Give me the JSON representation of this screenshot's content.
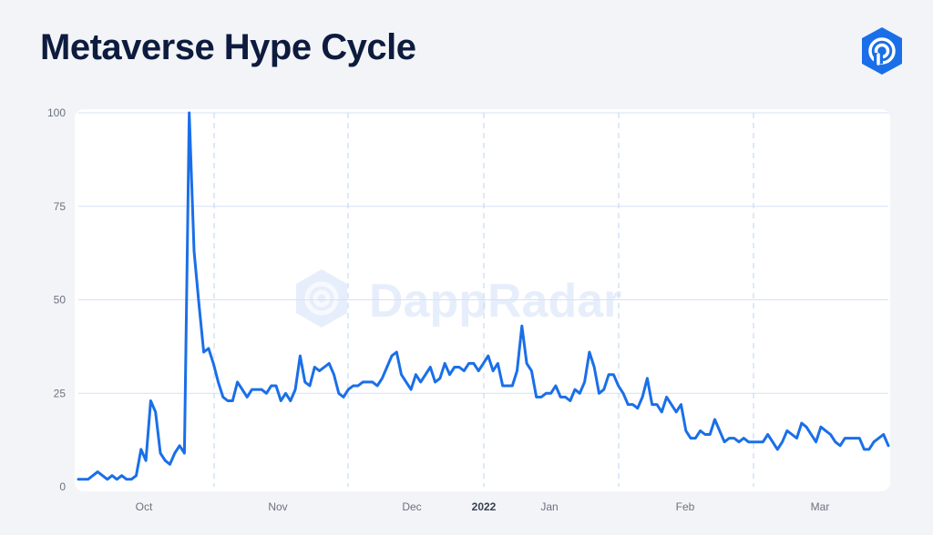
{
  "title": "Metaverse Hype Cycle",
  "watermark": "DappRadar",
  "logo_icon": "dappradar-logo-icon",
  "colors": {
    "line": "#1a6fe8",
    "title": "#0d1b3e",
    "logo": "#1a6fe8",
    "grid": "#d4e1f7"
  },
  "chart_data": {
    "type": "line",
    "title": "Metaverse Hype Cycle",
    "xlabel": "",
    "ylabel": "",
    "ylim": [
      0,
      100
    ],
    "y_ticks": [
      0,
      25,
      50,
      75,
      100
    ],
    "x_ticks": [
      {
        "label": "Oct",
        "bold": false
      },
      {
        "label": "Nov",
        "bold": false
      },
      {
        "label": "Dec",
        "bold": false
      },
      {
        "label": "2022",
        "bold": true
      },
      {
        "label": "Jan",
        "bold": false
      },
      {
        "label": "Feb",
        "bold": false
      },
      {
        "label": "Mar",
        "bold": false
      }
    ],
    "grid": true,
    "values": [
      2,
      2,
      2,
      3,
      4,
      3,
      2,
      3,
      2,
      3,
      2,
      2,
      3,
      10,
      7,
      23,
      20,
      9,
      7,
      6,
      9,
      11,
      9,
      100,
      63,
      49,
      36,
      37,
      33,
      28,
      24,
      23,
      23,
      28,
      26,
      24,
      26,
      26,
      26,
      25,
      27,
      27,
      23,
      25,
      23,
      26,
      35,
      28,
      27,
      32,
      31,
      32,
      33,
      30,
      25,
      24,
      26,
      27,
      27,
      28,
      28,
      28,
      27,
      29,
      32,
      35,
      36,
      30,
      28,
      26,
      30,
      28,
      30,
      32,
      28,
      29,
      33,
      30,
      32,
      32,
      31,
      33,
      33,
      31,
      33,
      35,
      31,
      33,
      27,
      27,
      27,
      31,
      43,
      33,
      31,
      24,
      24,
      25,
      25,
      27,
      24,
      24,
      23,
      26,
      25,
      28,
      36,
      32,
      25,
      26,
      30,
      30,
      27,
      25,
      22,
      22,
      21,
      24,
      29,
      22,
      22,
      20,
      24,
      22,
      20,
      22,
      15,
      13,
      13,
      15,
      14,
      14,
      18,
      15,
      12,
      13,
      13,
      12,
      13,
      12,
      12,
      12,
      12,
      14,
      12,
      10,
      12,
      15,
      14,
      13,
      17,
      16,
      14,
      12,
      16,
      15,
      14,
      12,
      11,
      13,
      13,
      13,
      13,
      10,
      10,
      12,
      13,
      14,
      11
    ]
  }
}
